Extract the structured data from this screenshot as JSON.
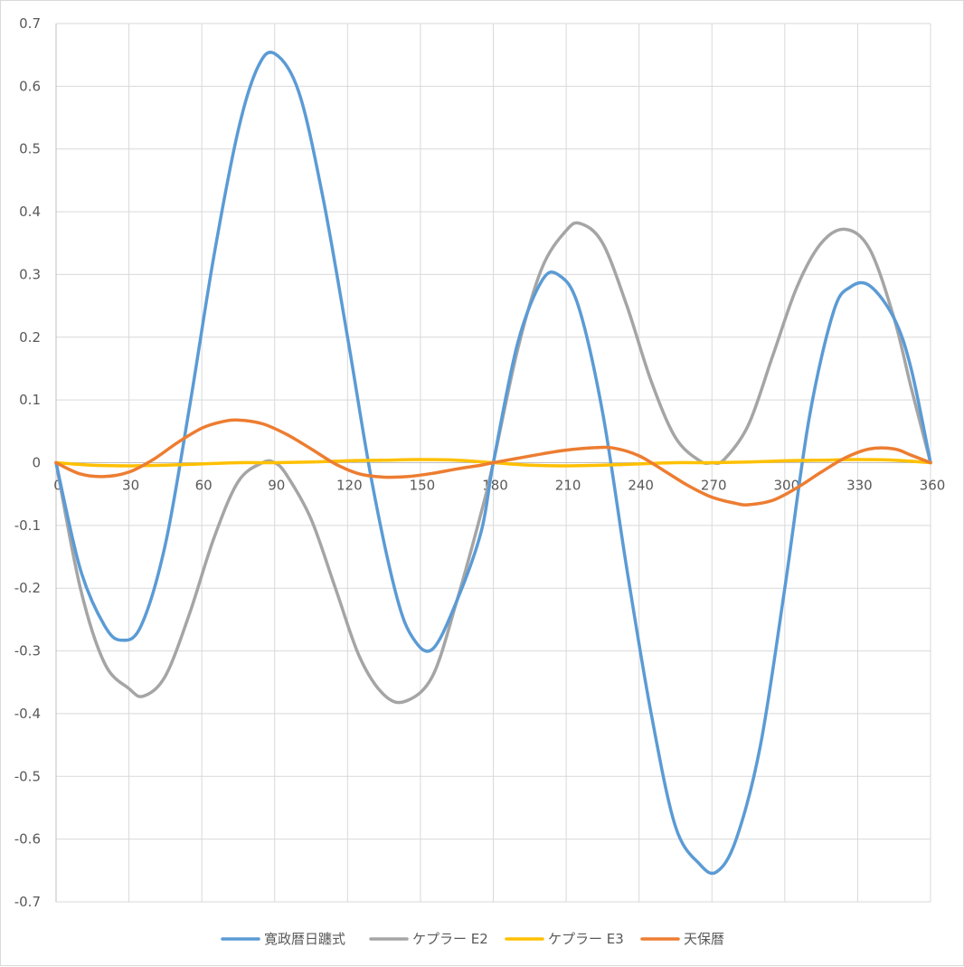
{
  "chart_data": {
    "type": "line",
    "title": "",
    "xlabel": "",
    "ylabel": "",
    "xlim": [
      0,
      360
    ],
    "ylim": [
      -0.7,
      0.7
    ],
    "x_ticks": [
      0,
      30,
      60,
      90,
      120,
      150,
      180,
      210,
      240,
      270,
      300,
      330,
      360
    ],
    "x_tick_labels": [
      "0",
      "30",
      "60",
      "90",
      "120",
      "150",
      "180",
      "210",
      "240",
      "270",
      "300",
      "330",
      "360"
    ],
    "y_ticks": [
      0.7,
      0.6,
      0.5,
      0.4,
      0.3,
      0.2,
      0.1,
      0,
      -0.1,
      -0.2,
      -0.3,
      -0.4,
      -0.5,
      -0.6,
      -0.7
    ],
    "y_tick_labels": [
      "0.7",
      "0.6",
      "0.5",
      "0.4",
      "0.3",
      "0.2",
      "0.1",
      "0",
      "-0.1",
      "-0.2",
      "-0.3",
      "-0.4",
      "-0.5",
      "-0.6",
      "-0.7"
    ],
    "grid": true,
    "legend_position": "bottom",
    "series": [
      {
        "name": "寛政暦日躔式",
        "color": "#5b9bd5",
        "x": [
          0,
          10,
          20,
          27,
          35,
          45,
          55,
          65,
          75,
          83,
          90,
          100,
          110,
          120,
          130,
          140,
          147,
          155,
          165,
          175,
          180,
          190,
          200,
          207,
          215,
          225,
          235,
          245,
          255,
          265,
          272,
          280,
          290,
          300,
          310,
          320,
          327,
          335,
          345,
          352,
          360
        ],
        "y": [
          0,
          -0.17,
          -0.26,
          -0.283,
          -0.26,
          -0.13,
          0.09,
          0.33,
          0.53,
          0.63,
          0.652,
          0.59,
          0.42,
          0.2,
          -0.03,
          -0.21,
          -0.28,
          -0.297,
          -0.22,
          -0.11,
          0,
          0.19,
          0.29,
          0.299,
          0.25,
          0.08,
          -0.17,
          -0.4,
          -0.58,
          -0.64,
          -0.652,
          -0.6,
          -0.45,
          -0.2,
          0.07,
          0.24,
          0.28,
          0.282,
          0.23,
          0.15,
          0
        ]
      },
      {
        "name": "ケプラー E2",
        "color": "#a5a5a5",
        "x": [
          0,
          10,
          20,
          30,
          36,
          45,
          55,
          65,
          75,
          85,
          90,
          95,
          105,
          115,
          125,
          135,
          144,
          155,
          165,
          175,
          180,
          190,
          200,
          210,
          216,
          225,
          235,
          245,
          255,
          265,
          270,
          275,
          285,
          295,
          305,
          315,
          325,
          335,
          345,
          352,
          360
        ],
        "y": [
          0,
          -0.2,
          -0.32,
          -0.36,
          -0.372,
          -0.34,
          -0.24,
          -0.12,
          -0.03,
          0,
          0,
          -0.02,
          -0.09,
          -0.2,
          -0.31,
          -0.37,
          -0.38,
          -0.34,
          -0.22,
          -0.08,
          0,
          0.18,
          0.31,
          0.37,
          0.381,
          0.35,
          0.25,
          0.13,
          0.04,
          0.003,
          0,
          0.005,
          0.06,
          0.17,
          0.28,
          0.35,
          0.372,
          0.34,
          0.23,
          0.12,
          0
        ]
      },
      {
        "name": "ケプラー E3",
        "color": "#ffc000",
        "x": [
          0,
          15,
          30,
          45,
          60,
          75,
          90,
          105,
          120,
          135,
          150,
          165,
          180,
          195,
          210,
          225,
          240,
          255,
          270,
          285,
          300,
          315,
          330,
          345,
          360
        ],
        "y": [
          0,
          -0.004,
          -0.005,
          -0.004,
          -0.002,
          0,
          0,
          0.001,
          0.003,
          0.004,
          0.005,
          0.004,
          0,
          -0.004,
          -0.005,
          -0.004,
          -0.002,
          0,
          0,
          0.001,
          0.003,
          0.004,
          0.005,
          0.004,
          0
        ]
      },
      {
        "name": "天保暦",
        "color": "#ed7d31",
        "x": [
          0,
          10,
          20,
          30,
          40,
          50,
          60,
          68,
          75,
          85,
          95,
          105,
          115,
          125,
          135,
          145,
          155,
          165,
          175,
          180,
          190,
          200,
          210,
          222,
          230,
          240,
          250,
          260,
          270,
          280,
          285,
          295,
          305,
          315,
          325,
          335,
          345,
          352,
          360
        ],
        "y": [
          0,
          -0.018,
          -0.022,
          -0.015,
          0.005,
          0.032,
          0.055,
          0.065,
          0.068,
          0.062,
          0.045,
          0.022,
          -0.002,
          -0.018,
          -0.023,
          -0.022,
          -0.017,
          -0.01,
          -0.004,
          0,
          0.007,
          0.014,
          0.02,
          0.024,
          0.023,
          0.011,
          -0.012,
          -0.036,
          -0.055,
          -0.065,
          -0.067,
          -0.06,
          -0.04,
          -0.015,
          0.008,
          0.022,
          0.022,
          0.012,
          0
        ]
      }
    ]
  }
}
